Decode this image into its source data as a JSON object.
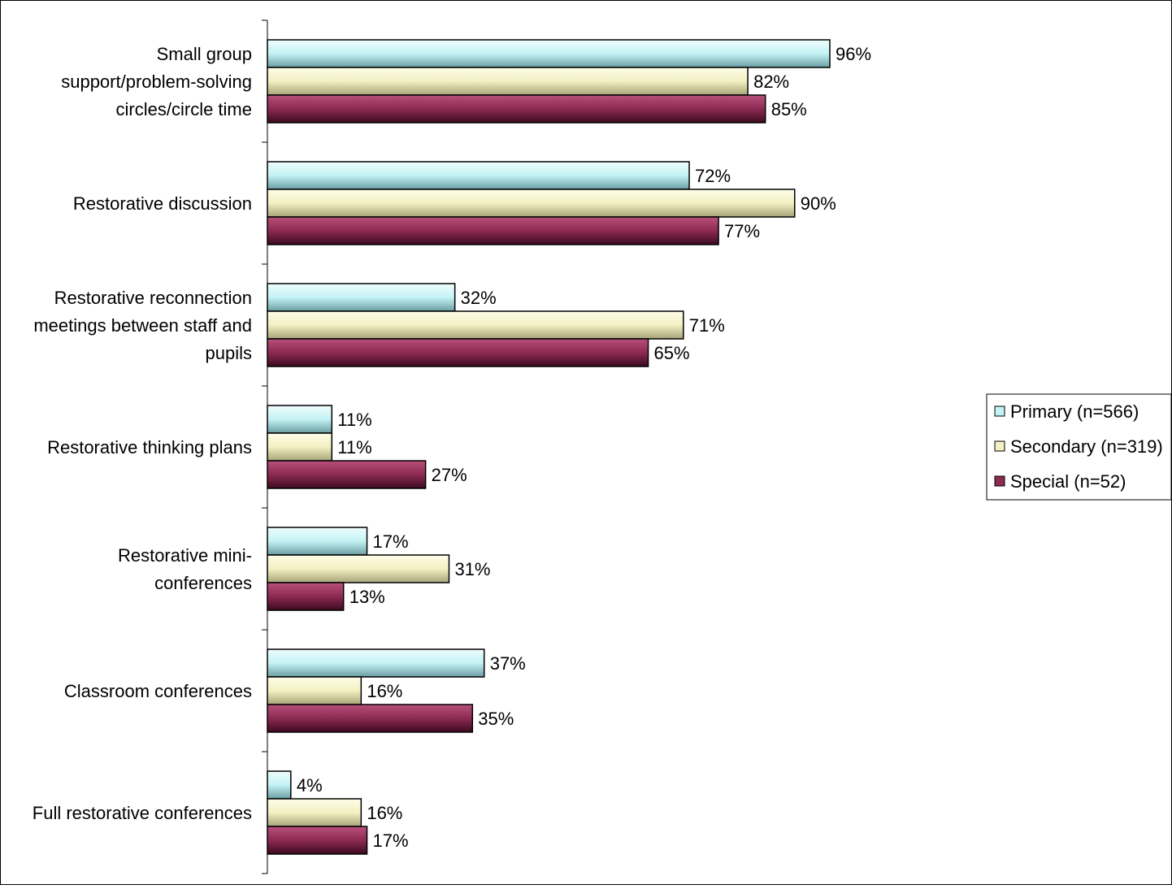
{
  "chart_data": {
    "type": "bar",
    "orientation": "horizontal",
    "title": "",
    "xlabel": "",
    "ylabel": "",
    "xlim": [
      0,
      100
    ],
    "value_suffix": "%",
    "grid": false,
    "legend_position": "right",
    "categories": [
      [
        "Small group",
        "support/problem-solving",
        "circles/circle time"
      ],
      [
        "Restorative discussion"
      ],
      [
        "Restorative reconnection",
        "meetings between staff and",
        "pupils"
      ],
      [
        "Restorative thinking plans"
      ],
      [
        "Restorative mini-",
        "conferences"
      ],
      [
        "Classroom conferences"
      ],
      [
        "Full restorative conferences"
      ]
    ],
    "series": [
      {
        "name": "Primary (n=566)",
        "color": "#c4f2f4",
        "values": [
          96,
          72,
          32,
          11,
          17,
          37,
          4
        ]
      },
      {
        "name": "Secondary (n=319)",
        "color": "#f3f0c2",
        "values": [
          82,
          90,
          71,
          11,
          31,
          16,
          16
        ]
      },
      {
        "name": "Special (n=52)",
        "color": "#8c2a52",
        "values": [
          85,
          77,
          65,
          27,
          13,
          35,
          17
        ]
      }
    ]
  }
}
